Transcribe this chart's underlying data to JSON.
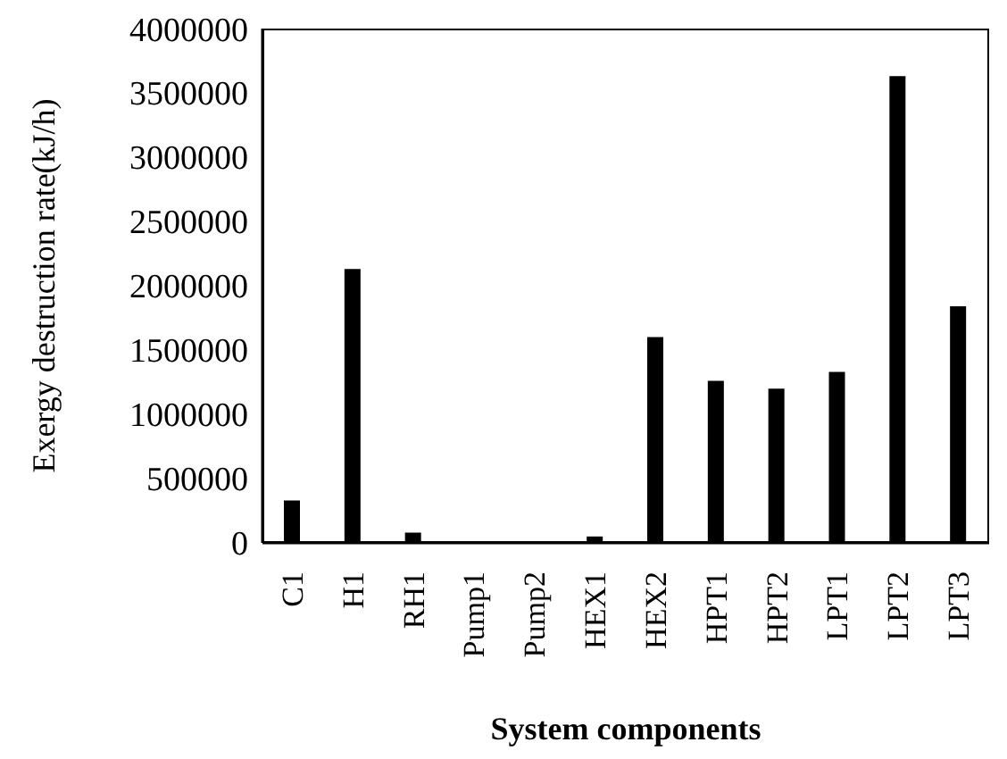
{
  "chart_data": {
    "type": "bar",
    "xlabel": "System components",
    "ylabel": "Exergy destruction rate(kJ/h)",
    "categories": [
      "C1",
      "H1",
      "RH1",
      "Pump1",
      "Pump2",
      "HEX1",
      "HEX2",
      "HPT1",
      "HPT2",
      "LPT1",
      "LPT2",
      "LPT3"
    ],
    "values": [
      330000,
      2130000,
      80000,
      0,
      0,
      50000,
      1600000,
      1260000,
      1200000,
      1330000,
      3630000,
      1840000
    ],
    "color": "#000000",
    "ylim": [
      0,
      4000000
    ],
    "yticks": [
      0,
      500000,
      1000000,
      1500000,
      2000000,
      2500000,
      3000000,
      3500000,
      4000000
    ],
    "grid": false,
    "legend": false
  }
}
